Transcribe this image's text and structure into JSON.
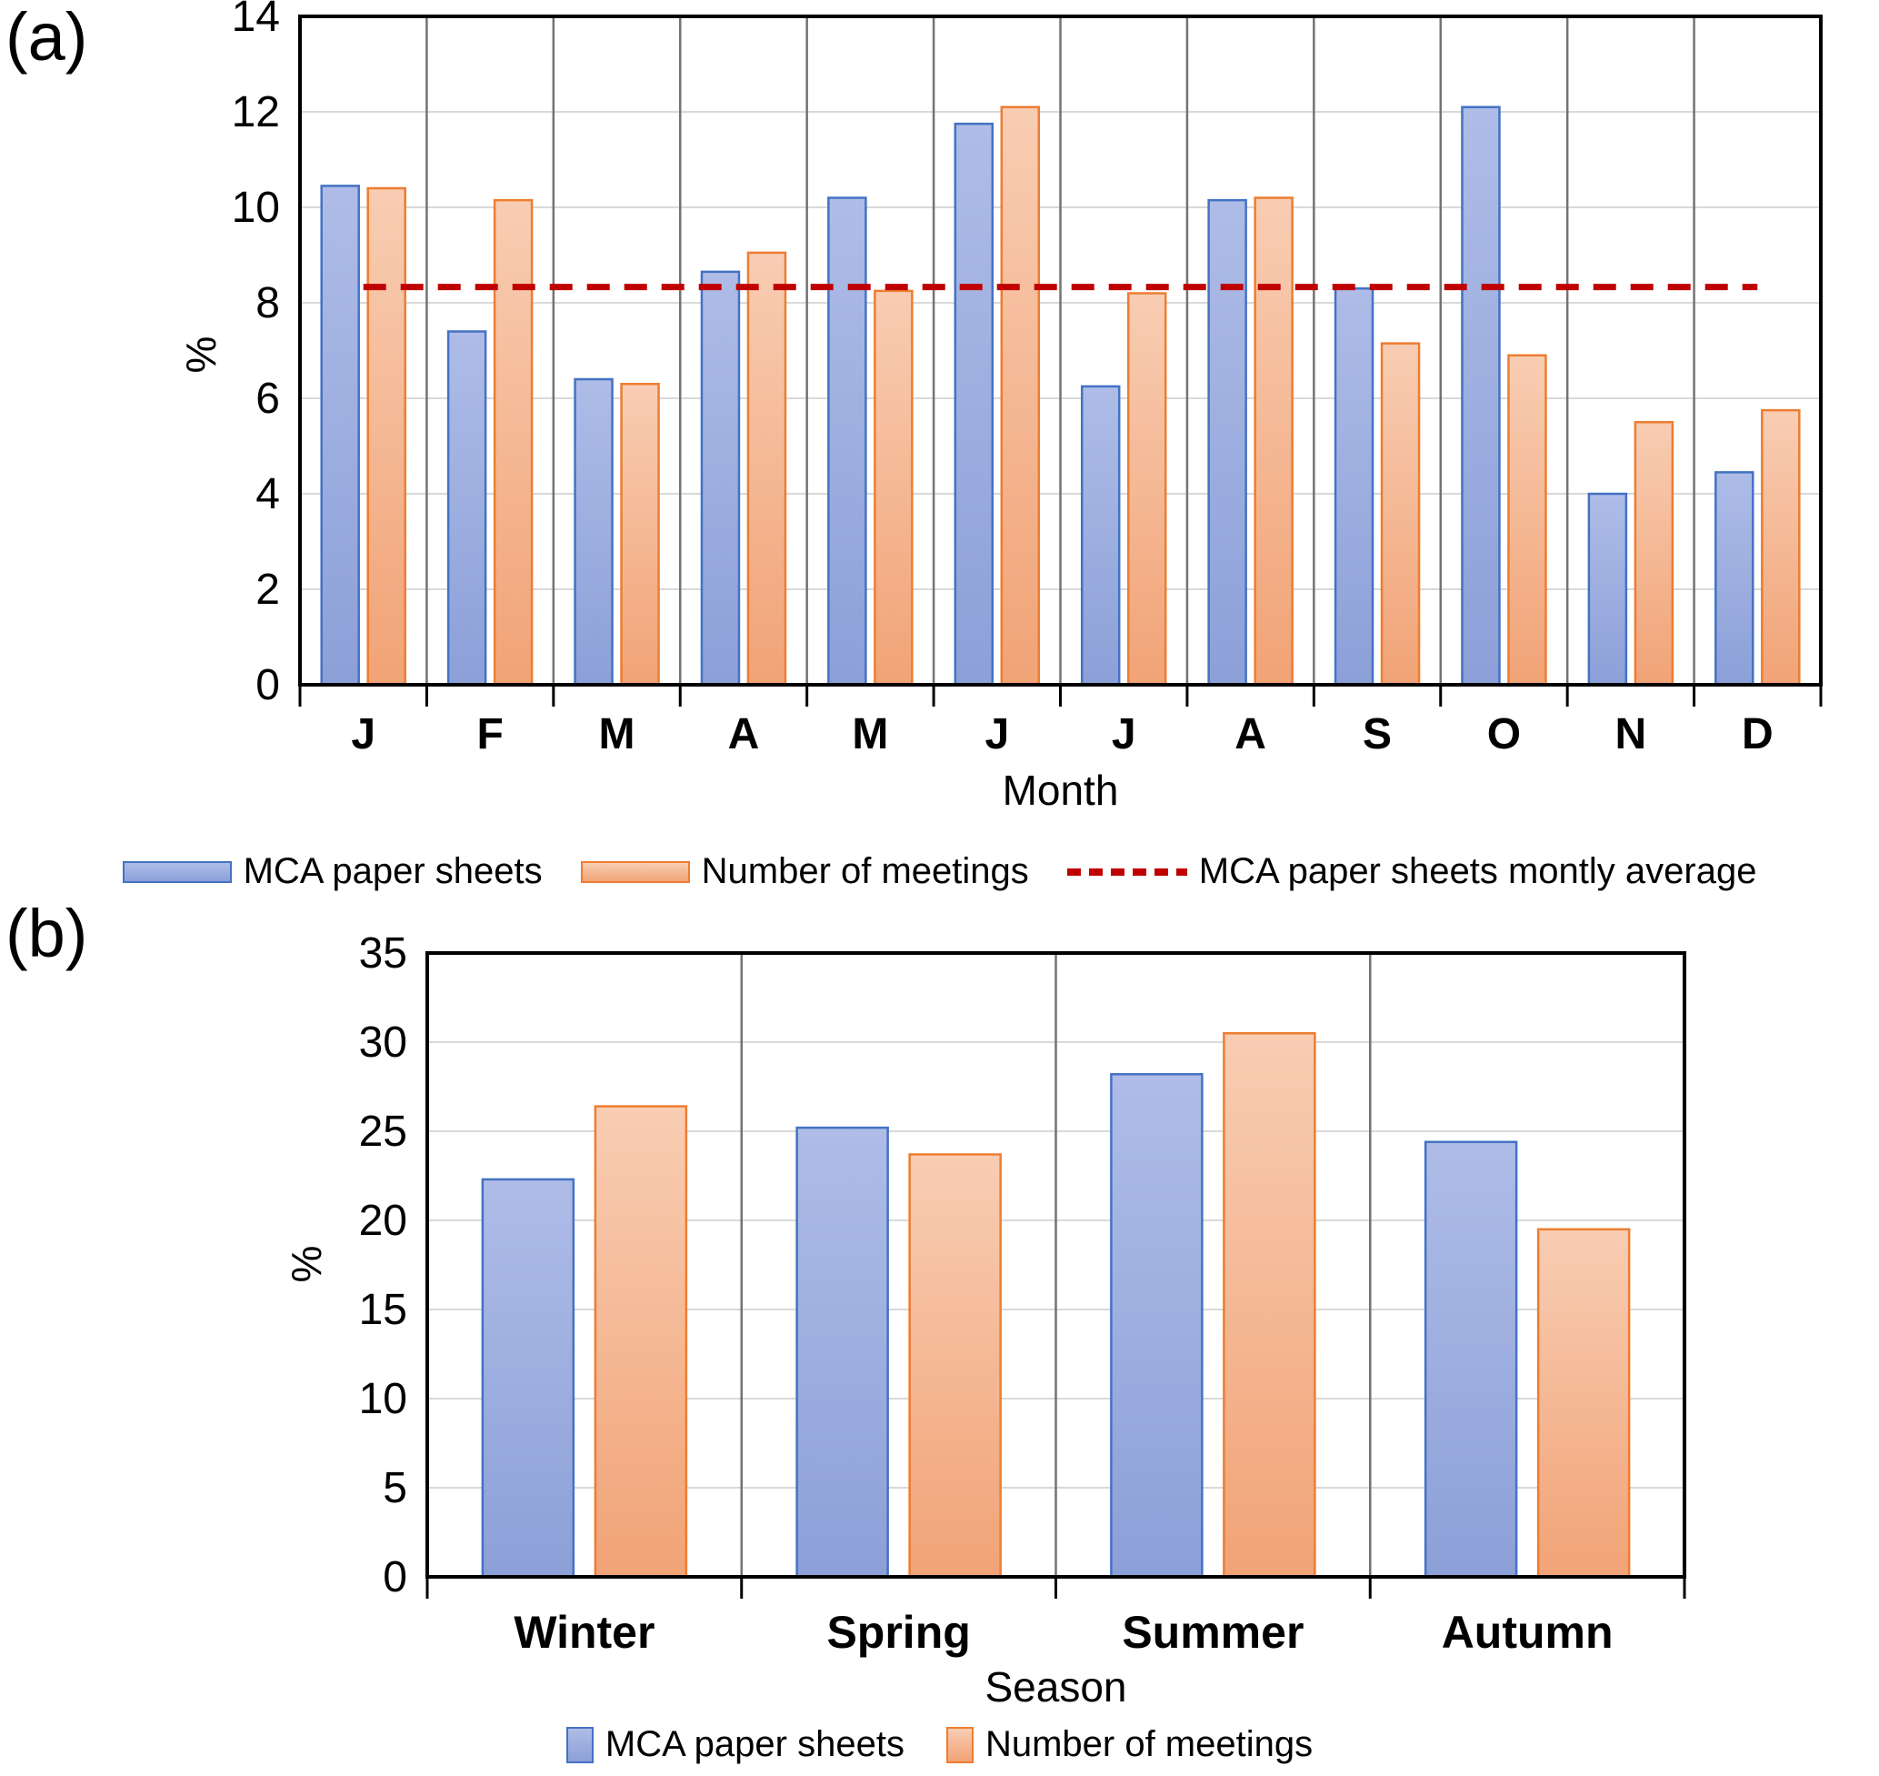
{
  "figure": {
    "panel_a_label": "(a)",
    "panel_b_label": "(b)"
  },
  "colors": {
    "blue_fill_top": "#AEBCE7",
    "blue_fill_bottom": "#8CA0D8",
    "blue_border": "#4472C4",
    "orange_fill_top": "#F8CDB3",
    "orange_fill_bottom": "#F1A376",
    "orange_border": "#ED7D31",
    "average_line": "#C00000",
    "gridline": "#D9D9D9",
    "separator": "#737373",
    "axis": "#000000"
  },
  "chart_data": [
    {
      "id": "a",
      "type": "bar",
      "title": "",
      "xlabel": "Month",
      "ylabel": "%",
      "ylim": [
        0,
        14
      ],
      "ytick_step": 2,
      "grid": true,
      "legend_position": "bottom",
      "categories": [
        "J",
        "F",
        "M",
        "A",
        "M",
        "J",
        "J",
        "A",
        "S",
        "O",
        "N",
        "D"
      ],
      "series": [
        {
          "name": "MCA paper sheets",
          "values": [
            10.45,
            7.4,
            6.4,
            8.65,
            10.2,
            11.75,
            6.25,
            10.15,
            8.3,
            12.1,
            4.0,
            4.45
          ]
        },
        {
          "name": "Number of meetings",
          "values": [
            10.4,
            10.15,
            6.3,
            9.05,
            8.25,
            12.1,
            8.2,
            10.2,
            7.15,
            6.9,
            5.5,
            5.75
          ]
        }
      ],
      "average_line": {
        "label": "MCA paper sheets montly average",
        "value": 8.33
      }
    },
    {
      "id": "b",
      "type": "bar",
      "title": "",
      "xlabel": "Season",
      "ylabel": "%",
      "ylim": [
        0,
        35
      ],
      "ytick_step": 5,
      "grid": true,
      "legend_position": "bottom",
      "categories": [
        "Winter",
        "Spring",
        "Summer",
        "Autumn"
      ],
      "series": [
        {
          "name": "MCA paper sheets",
          "values": [
            22.3,
            25.2,
            28.2,
            24.4
          ]
        },
        {
          "name": "Number of meetings",
          "values": [
            26.4,
            23.7,
            30.5,
            19.5
          ]
        }
      ]
    }
  ]
}
